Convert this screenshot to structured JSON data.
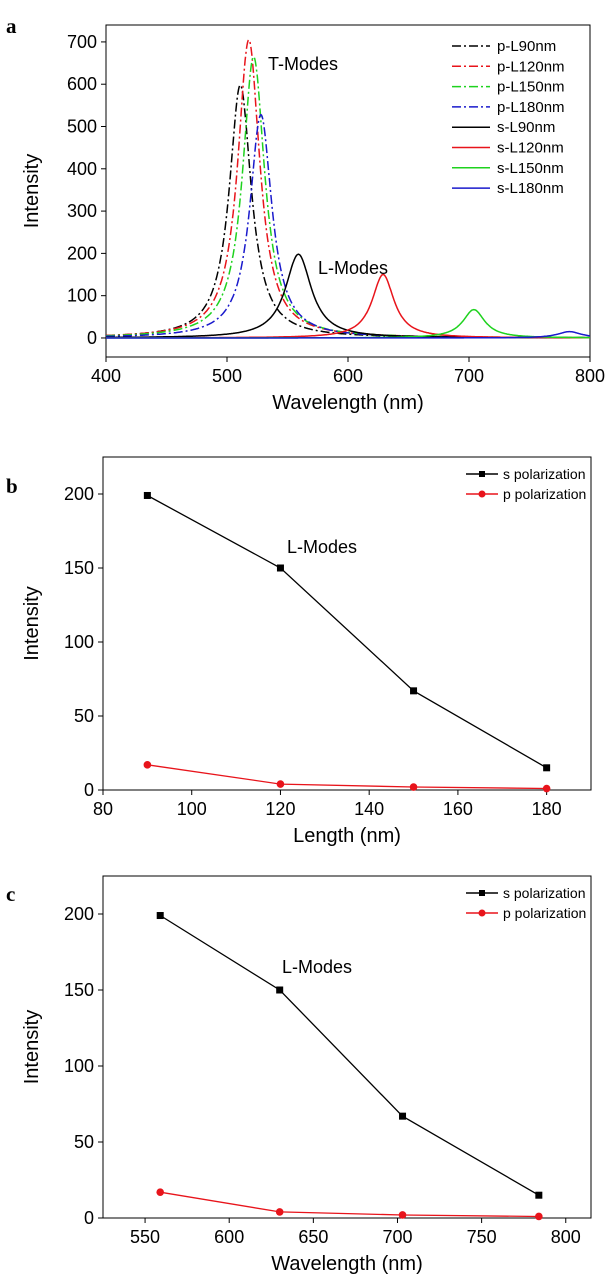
{
  "chart_data": [
    {
      "panel": "a",
      "type": "line",
      "xlabel": "Wavelength (nm)",
      "ylabel": "Intensity",
      "xlim": [
        400,
        800
      ],
      "ylim": [
        -45,
        740
      ],
      "xticks": [
        400,
        500,
        600,
        700,
        800
      ],
      "yticks": [
        0,
        100,
        200,
        300,
        400,
        500,
        600,
        700
      ],
      "annotations": [
        "T-Modes",
        "L-Modes"
      ],
      "legend_position": "top-right",
      "series": [
        {
          "name": "p-L90nm",
          "color": "#000000",
          "dash": "dashdot",
          "peaks": [
            {
              "x": 511,
              "y": 598,
              "width": 11
            }
          ]
        },
        {
          "name": "p-L120nm",
          "color": "#e8141b",
          "dash": "dashdot",
          "peaks": [
            {
              "x": 518,
              "y": 705,
              "width": 11
            }
          ]
        },
        {
          "name": "p-L150nm",
          "color": "#1ed21e",
          "dash": "dashdot",
          "peaks": [
            {
              "x": 522,
              "y": 665,
              "width": 11
            }
          ]
        },
        {
          "name": "p-L180nm",
          "color": "#1a1acc",
          "dash": "dashdot",
          "peaks": [
            {
              "x": 528,
              "y": 528,
              "width": 11
            }
          ]
        },
        {
          "name": "s-L90nm",
          "color": "#000000",
          "dash": "solid",
          "peaks": [
            {
              "x": 559,
              "y": 198,
              "width": 13
            }
          ]
        },
        {
          "name": "s-L120nm",
          "color": "#e8141b",
          "dash": "solid",
          "peaks": [
            {
              "x": 629,
              "y": 150,
              "width": 11
            }
          ]
        },
        {
          "name": "s-L150nm",
          "color": "#1ed21e",
          "dash": "solid",
          "peaks": [
            {
              "x": 704,
              "y": 67,
              "width": 11
            }
          ]
        },
        {
          "name": "s-L180nm",
          "color": "#1a1acc",
          "dash": "solid",
          "peaks": [
            {
              "x": 783,
              "y": 15,
              "width": 12
            }
          ]
        }
      ]
    },
    {
      "panel": "b",
      "type": "line",
      "xlabel": "Length (nm)",
      "ylabel": "Intensity",
      "xlim": [
        80,
        190
      ],
      "ylim": [
        0,
        225
      ],
      "xticks": [
        80,
        100,
        120,
        140,
        160,
        180
      ],
      "yticks": [
        0,
        50,
        100,
        150,
        200
      ],
      "annotations": [
        "L-Modes"
      ],
      "legend_position": "top-right",
      "series": [
        {
          "name": "s polarization",
          "color": "#000000",
          "marker": "square",
          "x": [
            90,
            120,
            150,
            180
          ],
          "y": [
            199,
            150,
            67,
            15
          ]
        },
        {
          "name": "p polarization",
          "color": "#e8141b",
          "marker": "circle",
          "x": [
            90,
            120,
            150,
            180
          ],
          "y": [
            17,
            4,
            2,
            1
          ]
        }
      ]
    },
    {
      "panel": "c",
      "type": "line",
      "xlabel": "Wavelength (nm)",
      "ylabel": "Intensity",
      "xlim": [
        525,
        815
      ],
      "ylim": [
        0,
        225
      ],
      "xticks": [
        550,
        600,
        650,
        700,
        750,
        800
      ],
      "yticks": [
        0,
        50,
        100,
        150,
        200
      ],
      "annotations": [
        "L-Modes"
      ],
      "legend_position": "top-right",
      "series": [
        {
          "name": "s polarization",
          "color": "#000000",
          "marker": "square",
          "x": [
            559,
            630,
            703,
            784
          ],
          "y": [
            199,
            150,
            67,
            15
          ]
        },
        {
          "name": "p polarization",
          "color": "#e8141b",
          "marker": "circle",
          "x": [
            559,
            630,
            703,
            784
          ],
          "y": [
            17,
            4,
            2,
            1
          ]
        }
      ]
    }
  ]
}
